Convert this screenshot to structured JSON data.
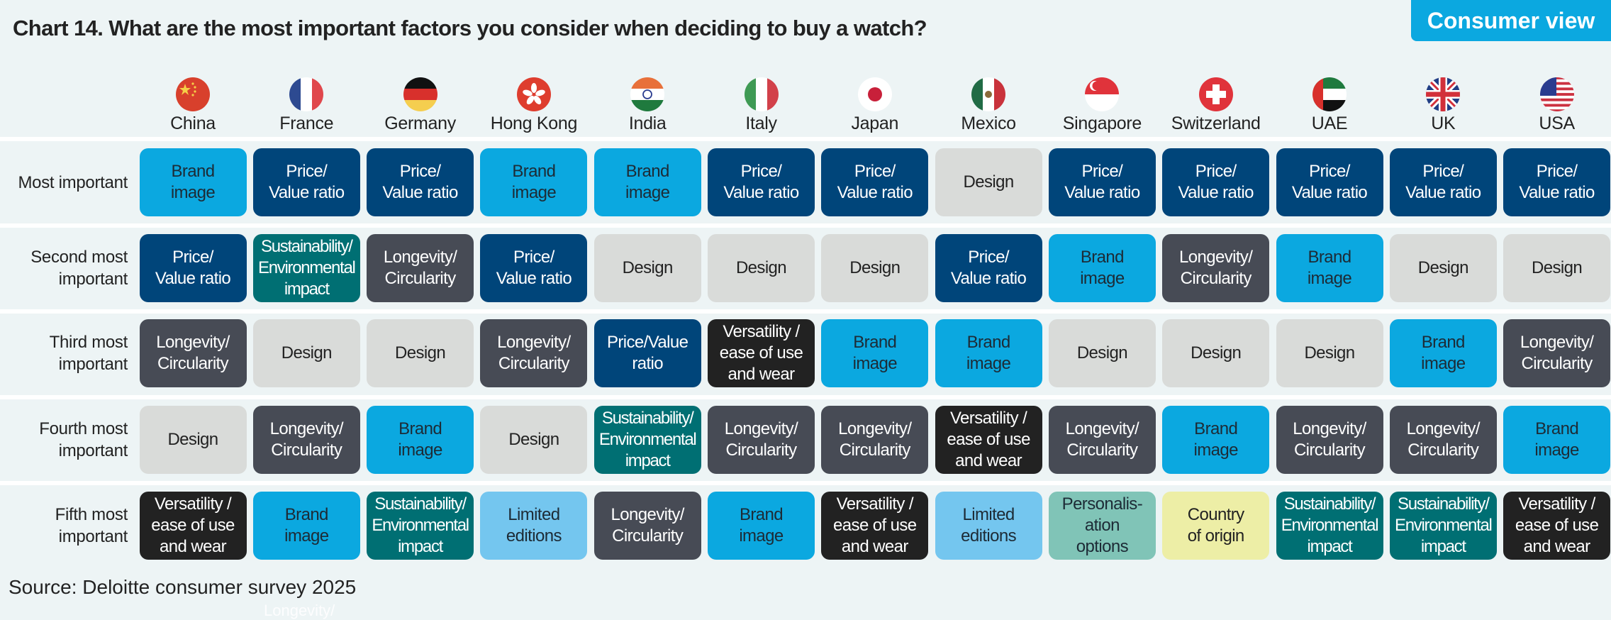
{
  "title": "Chart 14. What are the most important factors you consider when deciding to buy a watch?",
  "badge": "Consumer view",
  "source": "Source: Deloitte consumer survey 2025",
  "ghost_text": "Longevity/",
  "factor_colors": {
    "brand": {
      "bg": "#0ba8e0",
      "fg": "#1d2b36"
    },
    "price": {
      "bg": "#00457a",
      "fg": "#ffffff"
    },
    "design": {
      "bg": "#d9dbd9",
      "fg": "#222222"
    },
    "longevity": {
      "bg": "#474b55",
      "fg": "#ffffff"
    },
    "sustainability": {
      "bg": "#006f73",
      "fg": "#ffffff"
    },
    "versatility": {
      "bg": "#222222",
      "fg": "#ffffff"
    },
    "limited": {
      "bg": "#74c6ef",
      "fg": "#1d2b36"
    },
    "personalisation": {
      "bg": "#80c4b7",
      "fg": "#1d2b36"
    },
    "origin": {
      "bg": "#edeea6",
      "fg": "#222222"
    }
  },
  "chart_data": {
    "type": "table",
    "title": "Chart 14. What are the most important factors you consider when deciding to buy a watch?",
    "columns": [
      {
        "name": "China",
        "flag": "china-flag"
      },
      {
        "name": "France",
        "flag": "france-flag"
      },
      {
        "name": "Germany",
        "flag": "germany-flag"
      },
      {
        "name": "Hong Kong",
        "flag": "hong-kong-flag"
      },
      {
        "name": "India",
        "flag": "india-flag"
      },
      {
        "name": "Italy",
        "flag": "italy-flag"
      },
      {
        "name": "Japan",
        "flag": "japan-flag"
      },
      {
        "name": "Mexico",
        "flag": "mexico-flag"
      },
      {
        "name": "Singapore",
        "flag": "singapore-flag"
      },
      {
        "name": "Switzerland",
        "flag": "switzerland-flag"
      },
      {
        "name": "UAE",
        "flag": "uae-flag"
      },
      {
        "name": "UK",
        "flag": "uk-flag"
      },
      {
        "name": "USA",
        "flag": "usa-flag"
      }
    ],
    "rows": [
      {
        "label": "Most important",
        "cells": [
          {
            "factor": "brand",
            "text": "Brand\nimage"
          },
          {
            "factor": "price",
            "text": "Price/\nValue ratio"
          },
          {
            "factor": "price",
            "text": "Price/\nValue ratio"
          },
          {
            "factor": "brand",
            "text": "Brand\nimage"
          },
          {
            "factor": "brand",
            "text": "Brand\nimage"
          },
          {
            "factor": "price",
            "text": "Price/\nValue ratio"
          },
          {
            "factor": "price",
            "text": "Price/\nValue ratio"
          },
          {
            "factor": "design",
            "text": "Design"
          },
          {
            "factor": "price",
            "text": "Price/\nValue ratio"
          },
          {
            "factor": "price",
            "text": "Price/\nValue ratio"
          },
          {
            "factor": "price",
            "text": "Price/\nValue ratio"
          },
          {
            "factor": "price",
            "text": "Price/\nValue ratio"
          },
          {
            "factor": "price",
            "text": "Price/\nValue ratio"
          }
        ]
      },
      {
        "label": "Second most\nimportant",
        "cells": [
          {
            "factor": "price",
            "text": "Price/\nValue ratio"
          },
          {
            "factor": "sustainability",
            "text": "Sustainability/\nEnvironmental\nimpact"
          },
          {
            "factor": "longevity",
            "text": "Longevity/\nCircularity"
          },
          {
            "factor": "price",
            "text": "Price/\nValue ratio"
          },
          {
            "factor": "design",
            "text": "Design"
          },
          {
            "factor": "design",
            "text": "Design"
          },
          {
            "factor": "design",
            "text": "Design"
          },
          {
            "factor": "price",
            "text": "Price/\nValue ratio"
          },
          {
            "factor": "brand",
            "text": "Brand\nimage"
          },
          {
            "factor": "longevity",
            "text": "Longevity/\nCircularity"
          },
          {
            "factor": "brand",
            "text": "Brand\nimage"
          },
          {
            "factor": "design",
            "text": "Design"
          },
          {
            "factor": "design",
            "text": "Design"
          }
        ]
      },
      {
        "label": "Third most\nimportant",
        "cells": [
          {
            "factor": "longevity",
            "text": "Longevity/\nCircularity"
          },
          {
            "factor": "design",
            "text": "Design"
          },
          {
            "factor": "design",
            "text": "Design"
          },
          {
            "factor": "longevity",
            "text": "Longevity/\nCircularity"
          },
          {
            "factor": "price",
            "text": "Price/Value\nratio"
          },
          {
            "factor": "versatility",
            "text": "Versatility /\nease of use\nand wear"
          },
          {
            "factor": "brand",
            "text": "Brand\nimage"
          },
          {
            "factor": "brand",
            "text": "Brand\nimage"
          },
          {
            "factor": "design",
            "text": "Design"
          },
          {
            "factor": "design",
            "text": "Design"
          },
          {
            "factor": "design",
            "text": "Design"
          },
          {
            "factor": "brand",
            "text": "Brand\nimage"
          },
          {
            "factor": "longevity",
            "text": "Longevity/\nCircularity"
          }
        ]
      },
      {
        "label": "Fourth most\nimportant",
        "cells": [
          {
            "factor": "design",
            "text": "Design"
          },
          {
            "factor": "longevity",
            "text": "Longevity/\nCircularity"
          },
          {
            "factor": "brand",
            "text": "Brand\nimage"
          },
          {
            "factor": "design",
            "text": "Design"
          },
          {
            "factor": "sustainability",
            "text": "Sustainability/\nEnvironmental\nimpact"
          },
          {
            "factor": "longevity",
            "text": "Longevity/\nCircularity"
          },
          {
            "factor": "longevity",
            "text": "Longevity/\nCircularity"
          },
          {
            "factor": "versatility",
            "text": "Versatility /\nease of use\nand wear"
          },
          {
            "factor": "longevity",
            "text": "Longevity/\nCircularity"
          },
          {
            "factor": "brand",
            "text": "Brand\nimage"
          },
          {
            "factor": "longevity",
            "text": "Longevity/\nCircularity"
          },
          {
            "factor": "longevity",
            "text": "Longevity/\nCircularity"
          },
          {
            "factor": "brand",
            "text": "Brand\nimage"
          }
        ]
      },
      {
        "label": "Fifth most\nimportant",
        "cells": [
          {
            "factor": "versatility",
            "text": "Versatility /\nease of use\nand wear"
          },
          {
            "factor": "brand",
            "text": "Brand\nimage"
          },
          {
            "factor": "sustainability",
            "text": "Sustainability/\nEnvironmental\nimpact"
          },
          {
            "factor": "limited",
            "text": "Limited\neditions"
          },
          {
            "factor": "longevity",
            "text": "Longevity/\nCircularity"
          },
          {
            "factor": "brand",
            "text": "Brand\nimage"
          },
          {
            "factor": "versatility",
            "text": "Versatility /\nease of use\nand wear"
          },
          {
            "factor": "limited",
            "text": "Limited\neditions"
          },
          {
            "factor": "personalisation",
            "text": "Personalis-\nation\noptions"
          },
          {
            "factor": "origin",
            "text": "Country\nof origin"
          },
          {
            "factor": "sustainability",
            "text": "Sustainability/\nEnvironmental\nimpact"
          },
          {
            "factor": "sustainability",
            "text": "Sustainability/\nEnvironmental\nimpact"
          },
          {
            "factor": "versatility",
            "text": "Versatility /\nease of use\nand wear"
          }
        ]
      }
    ]
  }
}
